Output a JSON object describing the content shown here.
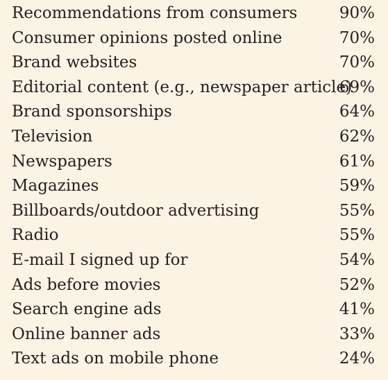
{
  "rows": [
    {
      "label": "Recommendations from consumers",
      "value": "90%"
    },
    {
      "label": "Consumer opinions posted online",
      "value": "70%"
    },
    {
      "label": "Brand websites",
      "value": "70%"
    },
    {
      "label": "Editorial content (e.g., newspaper article)",
      "value": "69%"
    },
    {
      "label": "Brand sponsorships",
      "value": "64%"
    },
    {
      "label": "Television",
      "value": "62%"
    },
    {
      "label": "Newspapers",
      "value": "61%"
    },
    {
      "label": "Magazines",
      "value": "59%"
    },
    {
      "label": "Billboards/outdoor advertising",
      "value": "55%"
    },
    {
      "label": "Radio",
      "value": "55%"
    },
    {
      "label": "E-mail I signed up for",
      "value": "54%"
    },
    {
      "label": "Ads before movies",
      "value": "52%"
    },
    {
      "label": "Search engine ads",
      "value": "41%"
    },
    {
      "label": "Online banner ads",
      "value": "33%"
    },
    {
      "label": "Text ads on mobile phone",
      "value": "24%"
    }
  ],
  "colors": {
    "background": "#fbf3e4",
    "text": "#231f20"
  }
}
